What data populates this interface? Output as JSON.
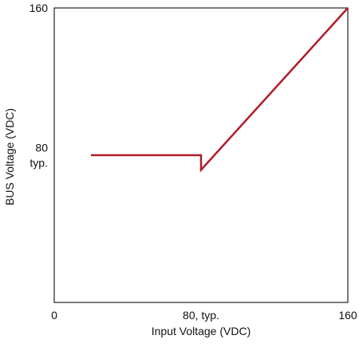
{
  "chart_data": {
    "type": "line",
    "title": "",
    "xlabel": "Input Voltage (VDC)",
    "ylabel": "BUS Voltage (VDC)",
    "xlim": [
      0,
      160
    ],
    "ylim": [
      0,
      160
    ],
    "grid": false,
    "x_ticks": [
      {
        "value": 0,
        "label": "0"
      },
      {
        "value": 80,
        "label": "80, typ."
      },
      {
        "value": 160,
        "label": "160"
      }
    ],
    "y_ticks": [
      {
        "value": 160,
        "label": "160"
      },
      {
        "value": 80,
        "label": [
          "80",
          "typ."
        ]
      }
    ],
    "series": [
      {
        "color": "#b01c2a",
        "points": [
          {
            "x": 20,
            "y": 80
          },
          {
            "x": 80,
            "y": 80
          },
          {
            "x": 80,
            "y": 72
          },
          {
            "x": 160,
            "y": 160
          }
        ]
      }
    ]
  }
}
